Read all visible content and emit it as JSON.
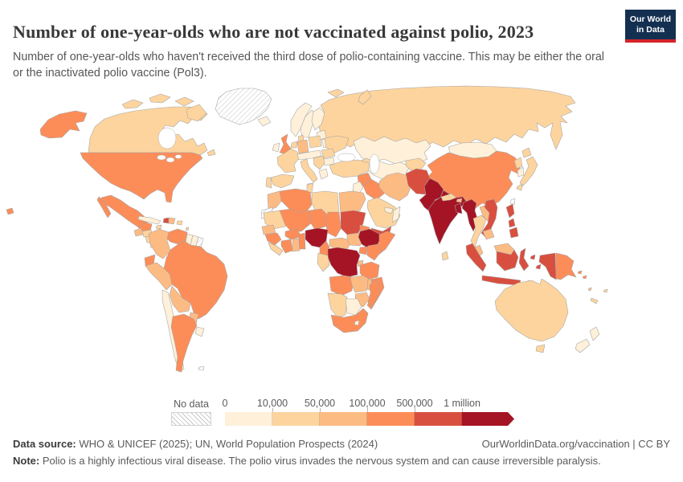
{
  "header": {
    "title": "Number of one-year-olds who are not vaccinated against polio, 2023",
    "subtitle": "Number of one-year-olds who haven't received the third dose of polio-containing vaccine. This may be either the oral or the inactivated polio vaccine (Pol3).",
    "logo": {
      "line1": "Our World",
      "line2": "in Data",
      "bg_color": "#143051",
      "accent_color": "#d5232a"
    }
  },
  "legend": {
    "no_data_label": "No data"
  },
  "footer": {
    "source_label": "Data source:",
    "source_text": " WHO & UNICEF (2025); UN, World Population Prospects (2024)",
    "attribution": "OurWorldinData.org/vaccination | CC BY",
    "note_label": "Note:",
    "note_text": " Polio is a highly infectious viral disease. The polio virus invades the nervous system and can cause irreversible paralysis."
  },
  "chart_data": {
    "type": "heatmap",
    "map_type": "world-choropleth",
    "title": "Number of one-year-olds who are not vaccinated against polio",
    "year": "2023",
    "unit": "one-year-old children not vaccinated (Pol3)",
    "legend": {
      "no_data_label": "No data",
      "tick_labels": [
        "0",
        "10,000",
        "50,000",
        "100,000",
        "500,000",
        "1 million"
      ],
      "colors": [
        "#fef0d9",
        "#fdd49e",
        "#fdbb84",
        "#fc8d59",
        "#d94f3f",
        "#a51425"
      ],
      "bin_ranges": [
        "0-10,000",
        "10,000-50,000",
        "50,000-100,000",
        "100,000-500,000",
        "500,000-1 million",
        "more than 1 million"
      ],
      "no_data_style": "white with gray diagonal hatching"
    },
    "country_bins": {
      "canada": 2,
      "greenland": 0,
      "iceland": 1,
      "usa": 4,
      "mexico": 4,
      "guatemala": 3,
      "honduras": 2,
      "nicaragua": 2,
      "costa_rica": 1,
      "panama": 2,
      "cuba": 1,
      "jamaica": 2,
      "haiti": 5,
      "dominican_republic": 3,
      "puerto_rico": 2,
      "lesser_antilles": 2,
      "colombia": 3,
      "venezuela": 4,
      "guyana": 1,
      "suriname": 1,
      "french_guiana": 0,
      "ecuador": 4,
      "peru": 3,
      "brazil": 4,
      "bolivia": 3,
      "paraguay": 3,
      "chile": 1,
      "argentina": 4,
      "uruguay": 1,
      "falkland": 0,
      "norway": 1,
      "sweden": 1,
      "finland": 1,
      "svalbard": 2,
      "denmark": 2,
      "uk": 4,
      "ireland": 1,
      "benelux": 2,
      "germany": 3,
      "poland": 2,
      "france": 2,
      "spain": 2,
      "portugal": 2,
      "central_europe": 1,
      "italy": 2,
      "balkans": 2,
      "greece": 1,
      "romania": 2,
      "bulgaria": 1,
      "ukraine": 2,
      "belarus": 1,
      "baltics": 1,
      "russia": 2,
      "caucasus": 2,
      "kazakhstan": 1,
      "central_asia": 1,
      "kyrgyz_tajik": 2,
      "turkey": 2,
      "syria": 4,
      "iraq": 4,
      "jordan_israel": 1,
      "saudi_arabia": 2,
      "yemen": 5,
      "oman": 1,
      "uae_qatar": 1,
      "iran": 3,
      "afghanistan": 5,
      "pakistan": 6,
      "india": 6,
      "nepal": 2,
      "bhutan": 3,
      "bangladesh": 6,
      "sri_lanka": 2,
      "myanmar": 6,
      "thailand": 2,
      "laos": 3,
      "vietnam": 5,
      "cambodia": 3,
      "malaysia": 3,
      "indonesia": 5,
      "china": 4,
      "mongolia": 1,
      "north_korea": 2,
      "south_korea": 1,
      "japan": 2,
      "taiwan": 0,
      "philippines": 5,
      "png": 4,
      "solomon": 4,
      "vanuatu": 3,
      "new_caledonia": 2,
      "fiji": 2,
      "timor": 2,
      "australia": 2,
      "new_zealand": 1,
      "morocco": 3,
      "western_sahara": 0,
      "algeria": 4,
      "tunisia": 2,
      "libya": 2,
      "egypt": 3,
      "mauritania": 2,
      "mali": 4,
      "niger": 4,
      "chad": 4,
      "sudan": 5,
      "eritrea": 4,
      "senegal": 3,
      "guinea": 4,
      "sierra_leone_liberia": 2,
      "ivory_coast": 4,
      "ghana": 3,
      "burkina_faso": 4,
      "benin_togo": 4,
      "nigeria": 6,
      "cameroon": 4,
      "car": 3,
      "south_sudan": 3,
      "ethiopia": 6,
      "somalia": 4,
      "uganda": 4,
      "kenya": 4,
      "drc": 6,
      "gabon_congo": 2,
      "rwanda_burundi": 3,
      "tanzania": 4,
      "angola": 4,
      "zambia": 3,
      "malawi": 3,
      "mozambique": 4,
      "zimbabwe": 3,
      "namibia": 2,
      "botswana": 1,
      "south_africa": 4,
      "lesotho": 1,
      "madagascar": 4
    }
  }
}
